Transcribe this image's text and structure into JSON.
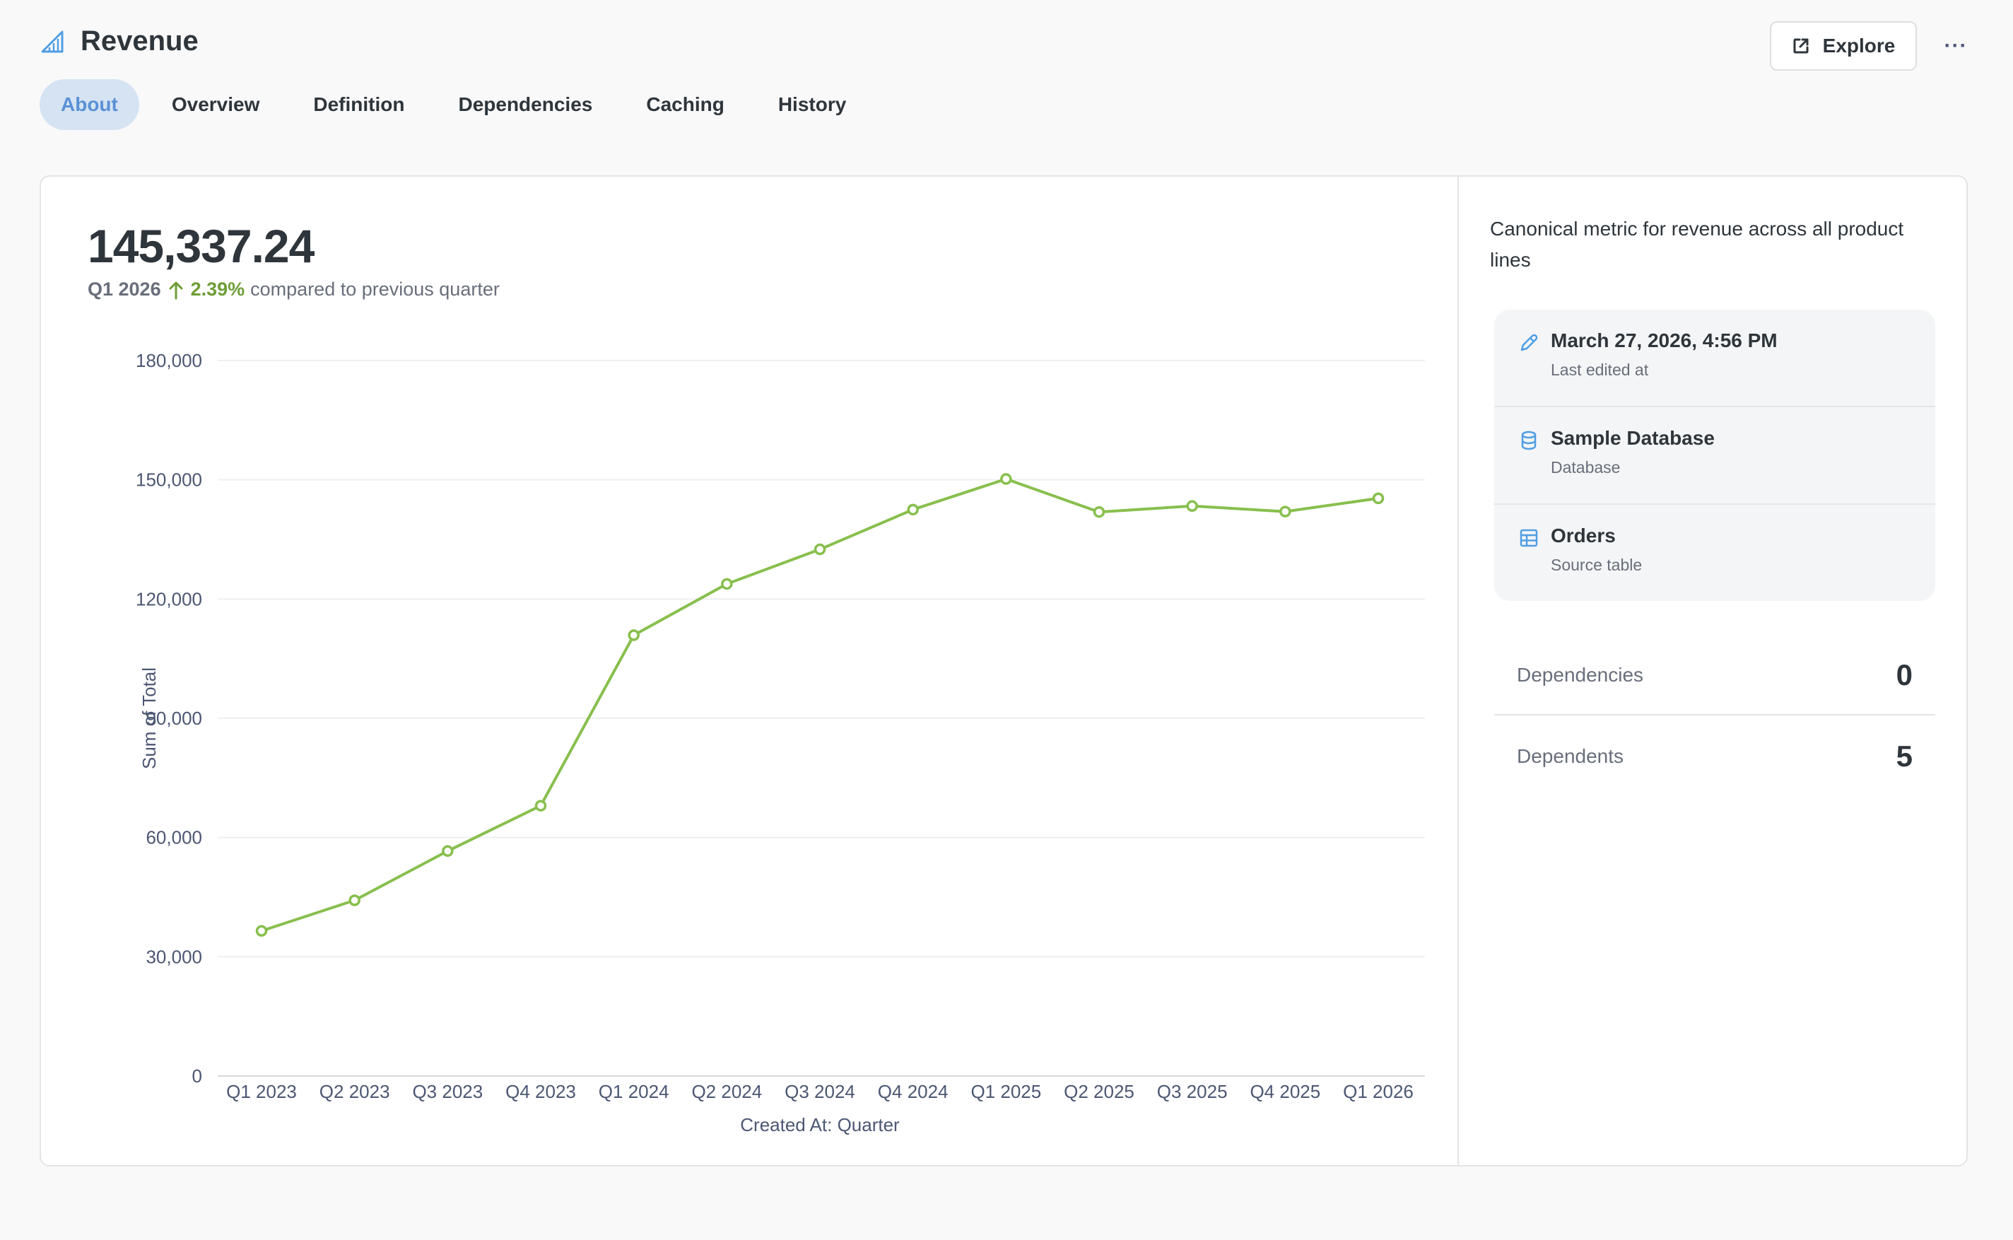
{
  "header": {
    "title": "Revenue",
    "explore_label": "Explore",
    "more_label": "···"
  },
  "tabs": [
    {
      "label": "About",
      "active": true
    },
    {
      "label": "Overview",
      "active": false
    },
    {
      "label": "Definition",
      "active": false
    },
    {
      "label": "Dependencies",
      "active": false
    },
    {
      "label": "Caching",
      "active": false
    },
    {
      "label": "History",
      "active": false
    }
  ],
  "metric": {
    "value": "145,337.24",
    "period": "Q1 2026",
    "change_pct": "2.39%",
    "change_text": "compared to previous quarter"
  },
  "chart_data": {
    "type": "line",
    "categories": [
      "Q1 2023",
      "Q2 2023",
      "Q3 2023",
      "Q4 2023",
      "Q1 2024",
      "Q2 2024",
      "Q3 2024",
      "Q4 2024",
      "Q1 2025",
      "Q2 2025",
      "Q3 2025",
      "Q4 2025",
      "Q1 2026"
    ],
    "series": [
      {
        "values": [
          36500,
          44200,
          56600,
          68000,
          110900,
          123800,
          132500,
          142500,
          150200,
          141900,
          143400,
          142000,
          145337
        ]
      }
    ],
    "xlabel": "Created At: Quarter",
    "ylabel": "Sum of Total",
    "ylim": [
      0,
      180000
    ],
    "yticks": [
      0,
      30000,
      60000,
      90000,
      120000,
      150000,
      180000
    ],
    "ytick_labels": [
      "0",
      "30,000",
      "60,000",
      "90,000",
      "120,000",
      "150,000",
      "180,000"
    ],
    "grid": true,
    "color": "#88bf4d"
  },
  "sidebar": {
    "description": "Canonical metric for revenue across all product lines",
    "info": [
      {
        "icon": "pencil-icon",
        "main": "March 27, 2026, 4:56 PM",
        "sub": "Last edited at"
      },
      {
        "icon": "database-icon",
        "main": "Sample Database",
        "sub": "Database"
      },
      {
        "icon": "table-icon",
        "main": "Orders",
        "sub": "Source table"
      }
    ],
    "stats": [
      {
        "label": "Dependencies",
        "value": "0"
      },
      {
        "label": "Dependents",
        "value": "5"
      }
    ]
  },
  "colors": {
    "accent": "#509ee3",
    "tab_active_bg": "#d5e3f3",
    "positive": "#6e9d36",
    "series": "#88bf4d"
  }
}
